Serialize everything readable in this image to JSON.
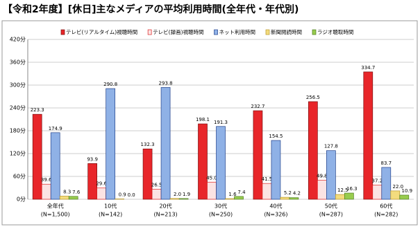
{
  "chart_data": {
    "type": "bar",
    "title": "【令和2年度】[休日]主なメディアの平均利用時間(全年代・年代別)",
    "categories": [
      "全年代",
      "10代",
      "20代",
      "30代",
      "40代",
      "50代",
      "60代"
    ],
    "sample_sizes": [
      "(N=1,500)",
      "(N=142)",
      "(N=213)",
      "(N=250)",
      "(N=326)",
      "(N=287)",
      "(N=282)"
    ],
    "series": [
      {
        "name": "テレビ(リアルタイム)視聴時間",
        "color": "#e8262a",
        "values": [
          223.3,
          93.9,
          132.3,
          198.1,
          232.7,
          256.5,
          334.7
        ],
        "value_labels": [
          "223.3",
          "93.9",
          "132.3",
          "198.1",
          "232.7",
          "256.5",
          "334.7"
        ]
      },
      {
        "name": "テレビ(録画)視聴時間",
        "color": "#fbe3e3",
        "values": [
          39.6,
          29.6,
          26.5,
          45.0,
          41.5,
          49.8,
          37.2
        ],
        "value_labels": [
          "39.6",
          "29.6",
          "26.5",
          "45.0",
          "41.5",
          "49.8",
          "37.2"
        ]
      },
      {
        "name": "ネット利用時間",
        "color": "#8fb1e6",
        "values": [
          174.9,
          290.8,
          293.8,
          191.3,
          154.5,
          127.8,
          83.7
        ],
        "value_labels": [
          "174.9",
          "290.8",
          "293.8",
          "191.3",
          "154.5",
          "127.8",
          "83.7"
        ]
      },
      {
        "name": "新聞閲読時間",
        "color": "#f3dc7e",
        "values": [
          8.3,
          0.9,
          2.0,
          1.6,
          5.2,
          12.5,
          22.0
        ],
        "value_labels": [
          "8.3",
          "0.9",
          "2.0",
          "1.6",
          "5.2",
          "12.5",
          "22.0"
        ]
      },
      {
        "name": "ラジオ聴取時間",
        "color": "#98cc4e",
        "values": [
          7.6,
          0.0,
          1.9,
          7.4,
          4.2,
          16.3,
          10.9
        ],
        "value_labels": [
          "7.6",
          "0.0",
          "1.9",
          "7.4",
          "4.2",
          "16.3",
          "10.9"
        ]
      }
    ],
    "ylim": [
      0,
      420
    ],
    "yticks": [
      {
        "value": 0,
        "label": "0分"
      },
      {
        "value": 60,
        "label": "60分"
      },
      {
        "value": 120,
        "label": "120分"
      },
      {
        "value": 180,
        "label": "180分"
      },
      {
        "value": 240,
        "label": "240分"
      },
      {
        "value": 300,
        "label": "300分"
      },
      {
        "value": 360,
        "label": "360分"
      },
      {
        "value": 420,
        "label": "420分"
      }
    ],
    "grid": true
  }
}
